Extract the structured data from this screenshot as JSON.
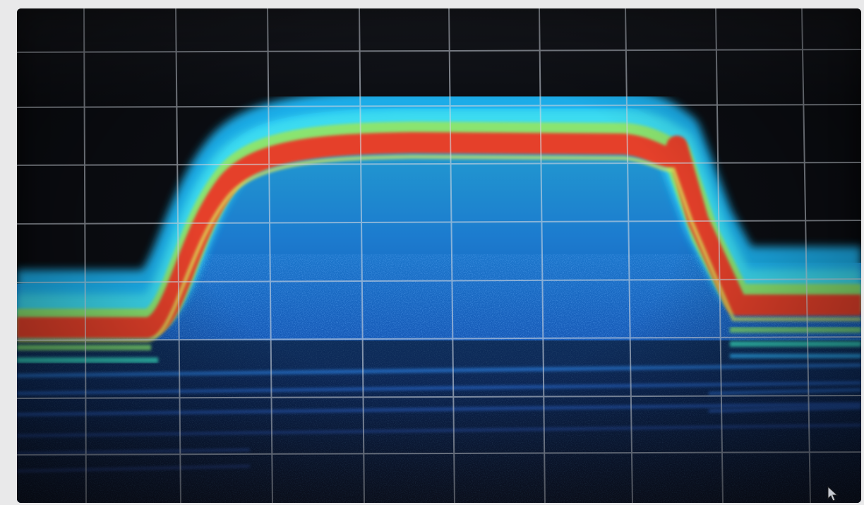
{
  "display": {
    "top_left_readout": "",
    "top_right_readout": "",
    "marker_label": "",
    "colors": {
      "background": "#0b0d12",
      "grid": "#cfd6df",
      "hot": "#e5402a",
      "warm": "#9be35a",
      "cool": "#25d3f0",
      "cold": "#1d6fe8"
    },
    "icons": [
      "mouse-pointer-icon"
    ]
  }
}
